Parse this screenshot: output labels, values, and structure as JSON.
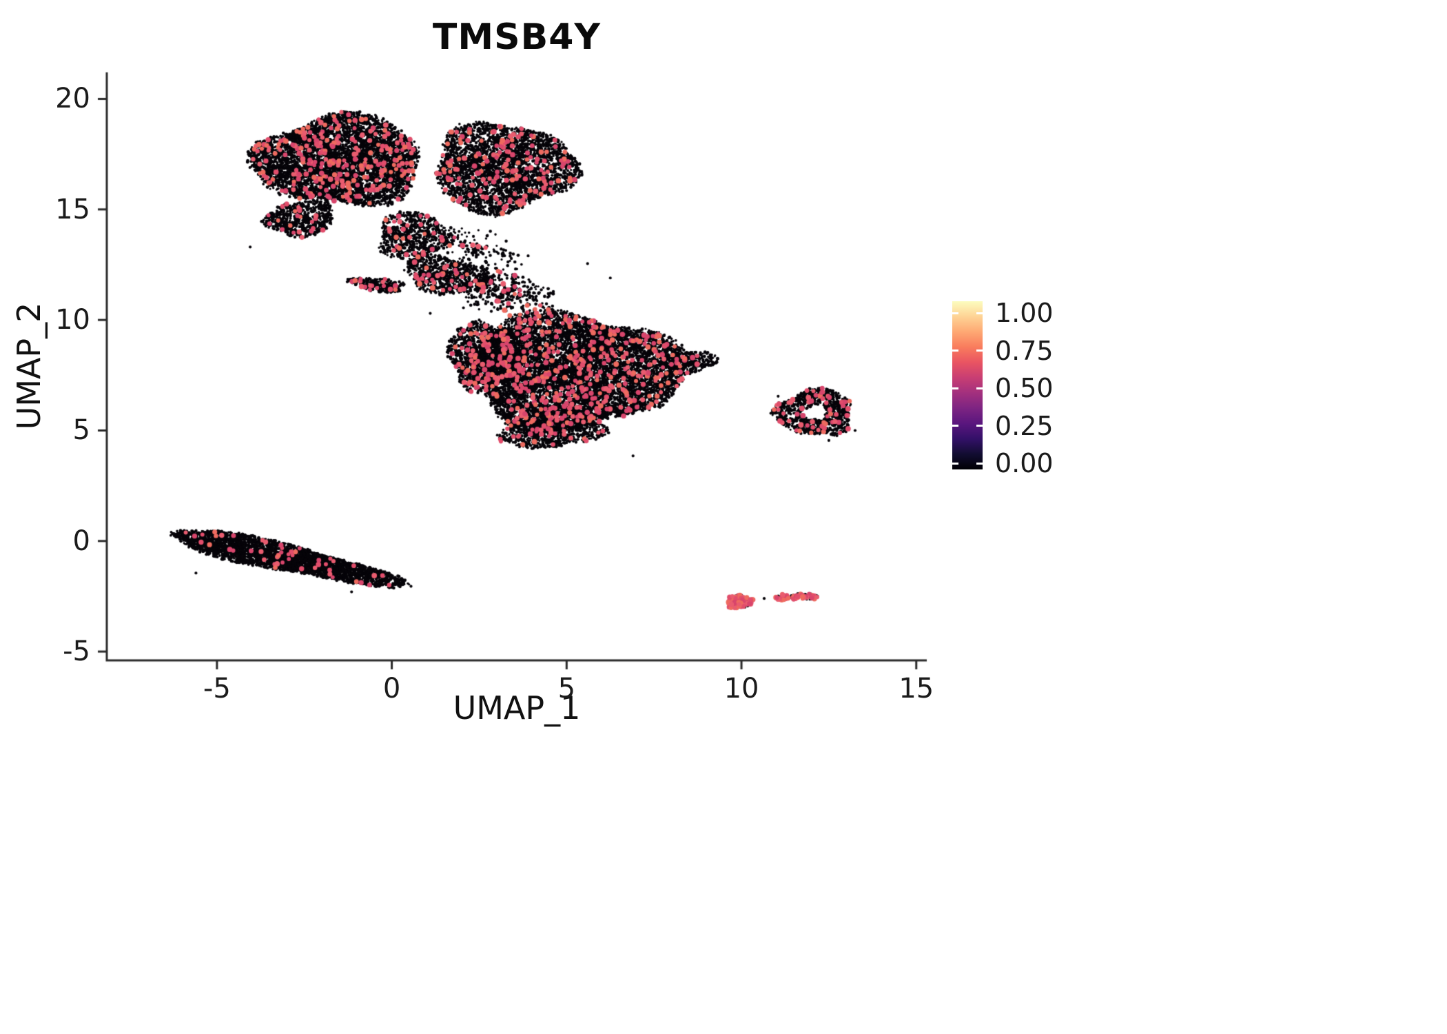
{
  "title": "TMSB4Y",
  "axes": {
    "x": {
      "label": "UMAP_1",
      "ticks": [
        -5,
        0,
        5,
        10,
        15
      ],
      "range": [
        -8.15,
        15.3
      ]
    },
    "y": {
      "label": "UMAP_2",
      "ticks": [
        -5,
        0,
        5,
        10,
        15,
        20
      ],
      "range": [
        -5.4,
        21.2
      ]
    }
  },
  "legend": {
    "ticks": [
      {
        "label": "1.00",
        "value": 1.0
      },
      {
        "label": "0.75",
        "value": 0.75
      },
      {
        "label": "0.50",
        "value": 0.5
      },
      {
        "label": "0.25",
        "value": 0.25
      },
      {
        "label": "0.00",
        "value": 0.0
      }
    ],
    "gradient": [
      "#000004",
      "#120D31",
      "#331068",
      "#5A167E",
      "#7D2482",
      "#A3307E",
      "#C83E73",
      "#E95462",
      "#F97C5D",
      "#FEA873",
      "#FED395",
      "#FCFDBF"
    ]
  },
  "chart_data": {
    "type": "scatter",
    "title": "TMSB4Y",
    "xlabel": "UMAP_1",
    "ylabel": "UMAP_2",
    "xlim": [
      -8.15,
      15.3
    ],
    "ylim": [
      -5.4,
      21.2
    ],
    "grid": false,
    "legend_position": "right",
    "color_scale": {
      "name": "magma",
      "domain": [
        0.0,
        1.0
      ],
      "meaning": "TMSB4Y expression"
    },
    "point_colors": {
      "base": "#060409",
      "highlight_palette": [
        "#D8456C",
        "#E14D6B",
        "#E95C6F",
        "#EE6A5F"
      ]
    },
    "clusters": [
      {
        "name": "upper-left-lobe",
        "cx": -1.5,
        "cy": 17.2,
        "rx": 2.4,
        "ry": 2.0,
        "rot": 0,
        "n": 5200,
        "highlight": 0.045
      },
      {
        "name": "upper-right-lobe",
        "cx": 3.2,
        "cy": 16.9,
        "rx": 2.0,
        "ry": 2.0,
        "rot": 0,
        "n": 3300,
        "highlight": 0.045
      },
      {
        "name": "upper-left-tail",
        "cx": -2.6,
        "cy": 14.6,
        "rx": 1.0,
        "ry": 0.8,
        "rot": 15,
        "n": 650,
        "highlight": 0.04
      },
      {
        "name": "upper-neck",
        "cx": 0.6,
        "cy": 13.8,
        "rx": 1.0,
        "ry": 1.1,
        "rot": 0,
        "n": 650,
        "highlight": 0.05
      },
      {
        "name": "neck-sparse",
        "cx": 2.4,
        "cy": 13.2,
        "rx": 1.4,
        "ry": 0.9,
        "rot": -25,
        "n": 160,
        "highlight": 0.04,
        "pow": 0.85
      },
      {
        "name": "bridge",
        "cx": 1.6,
        "cy": 12.0,
        "rx": 1.3,
        "ry": 0.8,
        "rot": -20,
        "n": 800,
        "highlight": 0.05
      },
      {
        "name": "bridge-spur",
        "cx": -0.4,
        "cy": 11.6,
        "rx": 0.8,
        "ry": 0.3,
        "rot": -12,
        "n": 260,
        "highlight": 0.06
      },
      {
        "name": "mid-sparse",
        "cx": 3.3,
        "cy": 11.2,
        "rx": 1.4,
        "ry": 0.9,
        "rot": -15,
        "n": 300,
        "highlight": 0.05,
        "pow": 0.85
      },
      {
        "name": "center-main",
        "cx": 5.2,
        "cy": 7.7,
        "rx": 3.0,
        "ry": 2.6,
        "rot": 0,
        "n": 8000,
        "highlight": 0.05
      },
      {
        "name": "center-left",
        "cx": 2.7,
        "cy": 8.4,
        "rx": 1.1,
        "ry": 1.5,
        "rot": 0,
        "n": 1400,
        "highlight": 0.05
      },
      {
        "name": "center-bottom",
        "cx": 4.6,
        "cy": 5.1,
        "rx": 1.5,
        "ry": 0.9,
        "rot": 10,
        "n": 1100,
        "highlight": 0.05
      },
      {
        "name": "center-right-tip",
        "cx": 8.5,
        "cy": 8.1,
        "rx": 0.8,
        "ry": 0.5,
        "rot": 12,
        "n": 280,
        "highlight": 0.05
      },
      {
        "name": "lower-left-strip",
        "cx": -3.1,
        "cy": -0.75,
        "rx": 3.5,
        "ry": 0.6,
        "rot": -19,
        "n": 3600,
        "highlight": 0.014
      },
      {
        "name": "right-island",
        "cx": 12.1,
        "cy": 5.8,
        "rx": 1.1,
        "ry": 1.05,
        "rot": 0,
        "n": 950,
        "highlight": 0.07,
        "hole": 0.3
      },
      {
        "name": "tiny-island-a",
        "cx": 9.95,
        "cy": -2.75,
        "rx": 0.38,
        "ry": 0.3,
        "rot": 0,
        "n": 170,
        "highlight": 0.5
      },
      {
        "name": "tiny-island-b",
        "cx": 11.25,
        "cy": -2.55,
        "rx": 0.28,
        "ry": 0.13,
        "rot": 0,
        "n": 70,
        "highlight": 0.45
      },
      {
        "name": "tiny-island-c",
        "cx": 11.85,
        "cy": -2.5,
        "rx": 0.35,
        "ry": 0.14,
        "rot": -5,
        "n": 85,
        "highlight": 0.35
      }
    ],
    "outliers": [
      [
        6.9,
        3.85
      ],
      [
        2.05,
        10.55
      ],
      [
        5.6,
        12.55
      ],
      [
        6.25,
        11.9
      ],
      [
        9.0,
        8.2
      ],
      [
        10.65,
        -2.6
      ],
      [
        11.05,
        6.55
      ],
      [
        13.25,
        5.0
      ],
      [
        12.5,
        4.55
      ],
      [
        -5.6,
        -1.45
      ],
      [
        -1.15,
        -2.3
      ],
      [
        0.55,
        -2.05
      ],
      [
        3.9,
        12.9
      ],
      [
        -4.05,
        13.3
      ],
      [
        1.1,
        10.3
      ],
      [
        2.5,
        10.0
      ]
    ]
  }
}
